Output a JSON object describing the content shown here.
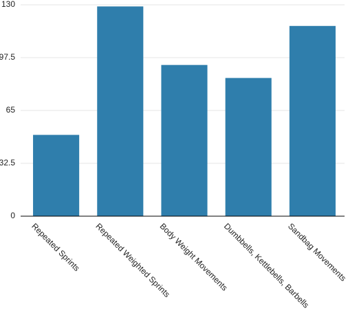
{
  "chart_data": {
    "type": "bar",
    "categories": [
      "Repeated Sprints",
      "Repeated Weighted Sprints",
      "Body Weight Movements",
      "Dumbbells, Kettlebells, Barbells",
      "Sandbag Movements"
    ],
    "values": [
      50,
      129,
      93,
      85,
      117
    ],
    "color": "#2f7eac",
    "ylim": [
      0,
      130
    ],
    "yticks": [
      0,
      32.5,
      65,
      97.5,
      130
    ],
    "grid": true
  }
}
